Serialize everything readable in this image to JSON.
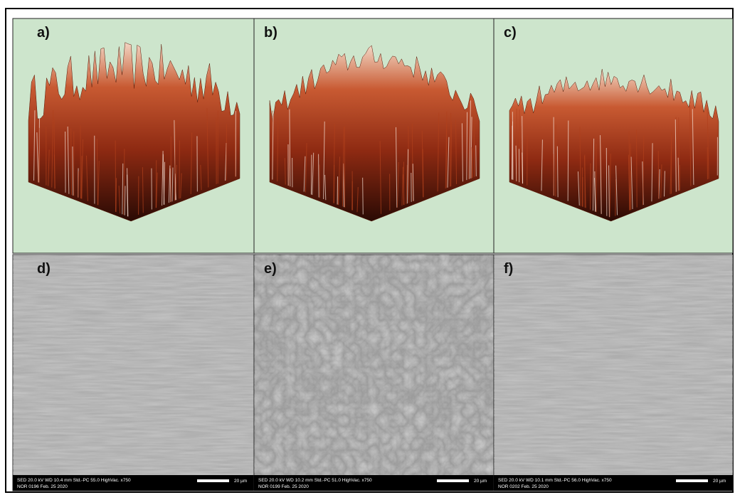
{
  "panels": [
    {
      "label": "a)"
    },
    {
      "label": "b)"
    },
    {
      "label": "c)"
    },
    {
      "label": "d)",
      "info": {
        "line1": "SED  20.0 kV  WD 10.4 mm   Std.-PC 55.0   HighVac.  x750",
        "line2": "NOR   0196   Feb. 25 2020",
        "scale": "20 µm"
      }
    },
    {
      "label": "e)",
      "info": {
        "line1": "SED  20.0 kV  WD 10.2 mm   Std.-PC 51.0   HighVac.  x750",
        "line2": "NOR   0199   Feb. 25 2020",
        "scale": "20 µm"
      }
    },
    {
      "label": "f)",
      "info": {
        "line1": "SED  20.0 kV  WD 10.1 mm   Std.-PC 56.0   HighVac.  x750",
        "line2": "NOR   0202   Feb. 25 2020",
        "scale": "20 µm"
      }
    }
  ]
}
